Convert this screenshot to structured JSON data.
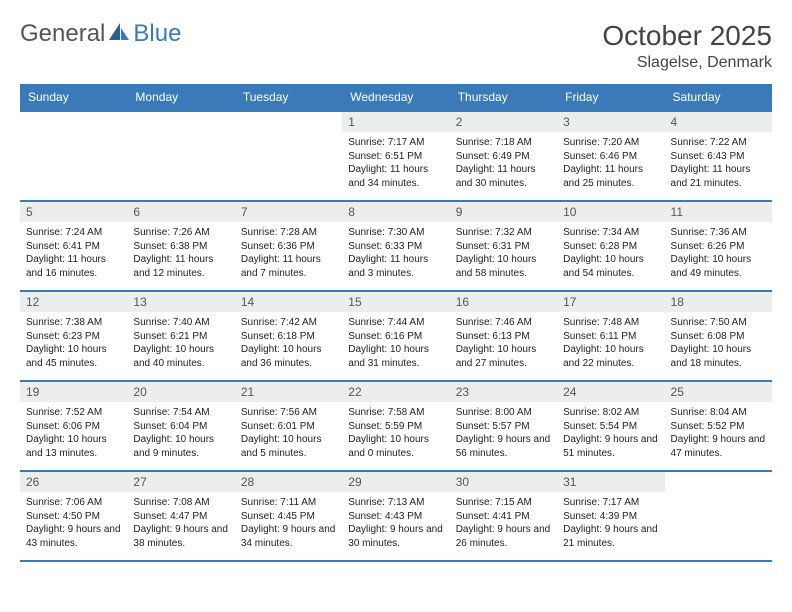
{
  "logo": {
    "part1": "General",
    "part2": "Blue"
  },
  "title": "October 2025",
  "location": "Slagelse, Denmark",
  "colors": {
    "header_bg": "#3a7ab8",
    "header_text": "#ffffff",
    "daynum_bg": "#eceded",
    "border": "#3a7ab8"
  },
  "day_headers": [
    "Sunday",
    "Monday",
    "Tuesday",
    "Wednesday",
    "Thursday",
    "Friday",
    "Saturday"
  ],
  "weeks": [
    [
      {
        "num": "",
        "sunrise": "",
        "sunset": "",
        "daylight": ""
      },
      {
        "num": "",
        "sunrise": "",
        "sunset": "",
        "daylight": ""
      },
      {
        "num": "",
        "sunrise": "",
        "sunset": "",
        "daylight": ""
      },
      {
        "num": "1",
        "sunrise": "Sunrise: 7:17 AM",
        "sunset": "Sunset: 6:51 PM",
        "daylight": "Daylight: 11 hours and 34 minutes."
      },
      {
        "num": "2",
        "sunrise": "Sunrise: 7:18 AM",
        "sunset": "Sunset: 6:49 PM",
        "daylight": "Daylight: 11 hours and 30 minutes."
      },
      {
        "num": "3",
        "sunrise": "Sunrise: 7:20 AM",
        "sunset": "Sunset: 6:46 PM",
        "daylight": "Daylight: 11 hours and 25 minutes."
      },
      {
        "num": "4",
        "sunrise": "Sunrise: 7:22 AM",
        "sunset": "Sunset: 6:43 PM",
        "daylight": "Daylight: 11 hours and 21 minutes."
      }
    ],
    [
      {
        "num": "5",
        "sunrise": "Sunrise: 7:24 AM",
        "sunset": "Sunset: 6:41 PM",
        "daylight": "Daylight: 11 hours and 16 minutes."
      },
      {
        "num": "6",
        "sunrise": "Sunrise: 7:26 AM",
        "sunset": "Sunset: 6:38 PM",
        "daylight": "Daylight: 11 hours and 12 minutes."
      },
      {
        "num": "7",
        "sunrise": "Sunrise: 7:28 AM",
        "sunset": "Sunset: 6:36 PM",
        "daylight": "Daylight: 11 hours and 7 minutes."
      },
      {
        "num": "8",
        "sunrise": "Sunrise: 7:30 AM",
        "sunset": "Sunset: 6:33 PM",
        "daylight": "Daylight: 11 hours and 3 minutes."
      },
      {
        "num": "9",
        "sunrise": "Sunrise: 7:32 AM",
        "sunset": "Sunset: 6:31 PM",
        "daylight": "Daylight: 10 hours and 58 minutes."
      },
      {
        "num": "10",
        "sunrise": "Sunrise: 7:34 AM",
        "sunset": "Sunset: 6:28 PM",
        "daylight": "Daylight: 10 hours and 54 minutes."
      },
      {
        "num": "11",
        "sunrise": "Sunrise: 7:36 AM",
        "sunset": "Sunset: 6:26 PM",
        "daylight": "Daylight: 10 hours and 49 minutes."
      }
    ],
    [
      {
        "num": "12",
        "sunrise": "Sunrise: 7:38 AM",
        "sunset": "Sunset: 6:23 PM",
        "daylight": "Daylight: 10 hours and 45 minutes."
      },
      {
        "num": "13",
        "sunrise": "Sunrise: 7:40 AM",
        "sunset": "Sunset: 6:21 PM",
        "daylight": "Daylight: 10 hours and 40 minutes."
      },
      {
        "num": "14",
        "sunrise": "Sunrise: 7:42 AM",
        "sunset": "Sunset: 6:18 PM",
        "daylight": "Daylight: 10 hours and 36 minutes."
      },
      {
        "num": "15",
        "sunrise": "Sunrise: 7:44 AM",
        "sunset": "Sunset: 6:16 PM",
        "daylight": "Daylight: 10 hours and 31 minutes."
      },
      {
        "num": "16",
        "sunrise": "Sunrise: 7:46 AM",
        "sunset": "Sunset: 6:13 PM",
        "daylight": "Daylight: 10 hours and 27 minutes."
      },
      {
        "num": "17",
        "sunrise": "Sunrise: 7:48 AM",
        "sunset": "Sunset: 6:11 PM",
        "daylight": "Daylight: 10 hours and 22 minutes."
      },
      {
        "num": "18",
        "sunrise": "Sunrise: 7:50 AM",
        "sunset": "Sunset: 6:08 PM",
        "daylight": "Daylight: 10 hours and 18 minutes."
      }
    ],
    [
      {
        "num": "19",
        "sunrise": "Sunrise: 7:52 AM",
        "sunset": "Sunset: 6:06 PM",
        "daylight": "Daylight: 10 hours and 13 minutes."
      },
      {
        "num": "20",
        "sunrise": "Sunrise: 7:54 AM",
        "sunset": "Sunset: 6:04 PM",
        "daylight": "Daylight: 10 hours and 9 minutes."
      },
      {
        "num": "21",
        "sunrise": "Sunrise: 7:56 AM",
        "sunset": "Sunset: 6:01 PM",
        "daylight": "Daylight: 10 hours and 5 minutes."
      },
      {
        "num": "22",
        "sunrise": "Sunrise: 7:58 AM",
        "sunset": "Sunset: 5:59 PM",
        "daylight": "Daylight: 10 hours and 0 minutes."
      },
      {
        "num": "23",
        "sunrise": "Sunrise: 8:00 AM",
        "sunset": "Sunset: 5:57 PM",
        "daylight": "Daylight: 9 hours and 56 minutes."
      },
      {
        "num": "24",
        "sunrise": "Sunrise: 8:02 AM",
        "sunset": "Sunset: 5:54 PM",
        "daylight": "Daylight: 9 hours and 51 minutes."
      },
      {
        "num": "25",
        "sunrise": "Sunrise: 8:04 AM",
        "sunset": "Sunset: 5:52 PM",
        "daylight": "Daylight: 9 hours and 47 minutes."
      }
    ],
    [
      {
        "num": "26",
        "sunrise": "Sunrise: 7:06 AM",
        "sunset": "Sunset: 4:50 PM",
        "daylight": "Daylight: 9 hours and 43 minutes."
      },
      {
        "num": "27",
        "sunrise": "Sunrise: 7:08 AM",
        "sunset": "Sunset: 4:47 PM",
        "daylight": "Daylight: 9 hours and 38 minutes."
      },
      {
        "num": "28",
        "sunrise": "Sunrise: 7:11 AM",
        "sunset": "Sunset: 4:45 PM",
        "daylight": "Daylight: 9 hours and 34 minutes."
      },
      {
        "num": "29",
        "sunrise": "Sunrise: 7:13 AM",
        "sunset": "Sunset: 4:43 PM",
        "daylight": "Daylight: 9 hours and 30 minutes."
      },
      {
        "num": "30",
        "sunrise": "Sunrise: 7:15 AM",
        "sunset": "Sunset: 4:41 PM",
        "daylight": "Daylight: 9 hours and 26 minutes."
      },
      {
        "num": "31",
        "sunrise": "Sunrise: 7:17 AM",
        "sunset": "Sunset: 4:39 PM",
        "daylight": "Daylight: 9 hours and 21 minutes."
      },
      {
        "num": "",
        "sunrise": "",
        "sunset": "",
        "daylight": ""
      }
    ]
  ]
}
